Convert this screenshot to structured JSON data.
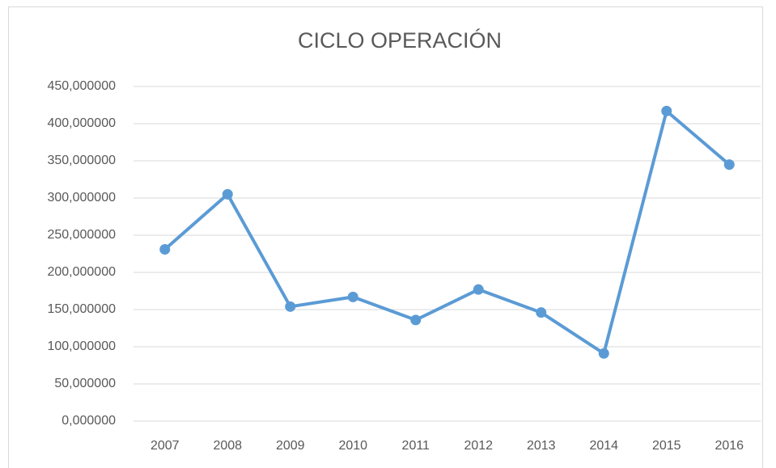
{
  "chart_data": {
    "type": "line",
    "title": "CICLO OPERACIÓN",
    "categories": [
      "2007",
      "2008",
      "2009",
      "2010",
      "2011",
      "2012",
      "2013",
      "2014",
      "2015",
      "2016"
    ],
    "values": [
      231,
      305,
      154,
      167,
      136,
      177,
      146,
      91,
      417,
      345
    ],
    "color": "#5b9bd5",
    "ylim": [
      0,
      450
    ],
    "yticks": [
      {
        "value": 0,
        "label": "0,000000"
      },
      {
        "value": 50,
        "label": "50,000000"
      },
      {
        "value": 100,
        "label": "100,000000"
      },
      {
        "value": 150,
        "label": "150,000000"
      },
      {
        "value": 200,
        "label": "200,000000"
      },
      {
        "value": 250,
        "label": "250,000000"
      },
      {
        "value": 300,
        "label": "300,000000"
      },
      {
        "value": 350,
        "label": "350,000000"
      },
      {
        "value": 400,
        "label": "400,000000"
      },
      {
        "value": 450,
        "label": "450,000000"
      }
    ],
    "grid": true
  }
}
